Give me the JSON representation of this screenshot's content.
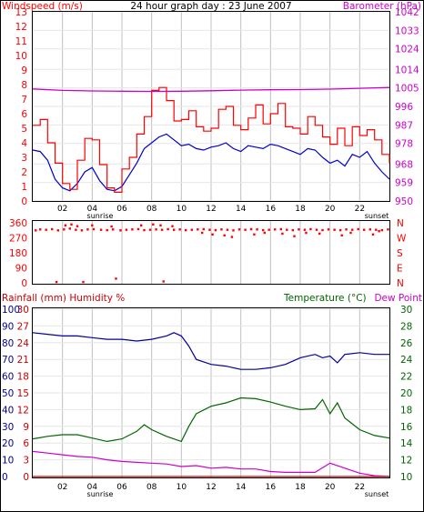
{
  "colors": {
    "wind": "#ff0000",
    "wind_avg": "#0000cc",
    "baro": "#cc00cc",
    "dir": "#ff0000",
    "rain": "#cc0000",
    "humidity": "#000099",
    "temp": "#006600",
    "dew": "#cc00cc",
    "grid": "#c0c0c0",
    "frame": "#000000"
  },
  "chart_data": [
    {
      "type": "line",
      "name": "wind-baro",
      "title": "24 hour graph day : 23 June 2007",
      "left_label": "Windspeed (m/s)",
      "right_label": "Barometer (hPa)",
      "x_ticks": [
        "02",
        "04",
        "06",
        "08",
        "10",
        "12",
        "14",
        "16",
        "18",
        "20",
        "22"
      ],
      "left_ticks": [
        "0",
        "1",
        "2",
        "3",
        "4",
        "5",
        "6",
        "7",
        "8",
        "9",
        "10",
        "11",
        "12",
        "13"
      ],
      "right_ticks": [
        "950",
        "959",
        "968",
        "978",
        "987",
        "996",
        "1005",
        "1014",
        "1024",
        "1033",
        "1042"
      ],
      "sunrise_label": "sunrise",
      "sunset_label": "sunset",
      "xlim": [
        0,
        24
      ],
      "ylim_left": [
        0,
        13
      ],
      "ylim_right": [
        950,
        1042
      ],
      "series": [
        {
          "key": "wind_avg",
          "x": [
            0,
            0.5,
            1,
            1.5,
            2,
            2.5,
            3,
            3.5,
            4,
            4.5,
            5,
            5.5,
            6,
            6.5,
            7,
            7.5,
            8,
            8.5,
            9,
            9.5,
            10,
            10.5,
            11,
            11.5,
            12,
            12.5,
            13,
            13.5,
            14,
            14.5,
            15,
            15.5,
            16,
            16.5,
            17,
            17.5,
            18,
            18.5,
            19,
            19.5,
            20,
            20.5,
            21,
            21.5,
            22,
            22.5,
            23,
            23.5,
            24
          ],
          "values": [
            3.5,
            3.4,
            2.8,
            1.5,
            0.9,
            0.7,
            1.2,
            2.0,
            2.3,
            1.4,
            0.8,
            0.7,
            1.0,
            1.8,
            2.6,
            3.6,
            4.0,
            4.4,
            4.6,
            4.2,
            3.8,
            3.9,
            3.6,
            3.5,
            3.7,
            3.8,
            4.0,
            3.6,
            3.4,
            3.8,
            3.7,
            3.6,
            3.9,
            3.8,
            3.6,
            3.4,
            3.2,
            3.6,
            3.5,
            3.0,
            2.6,
            2.8,
            2.4,
            3.2,
            3.0,
            3.4,
            2.6,
            2.0,
            1.5
          ]
        },
        {
          "key": "wind",
          "x": [
            0,
            0.5,
            1,
            1.5,
            2,
            2.5,
            3,
            3.5,
            4,
            4.5,
            5,
            5.5,
            6,
            6.5,
            7,
            7.5,
            8,
            8.5,
            9,
            9.5,
            10,
            10.5,
            11,
            11.5,
            12,
            12.5,
            13,
            13.5,
            14,
            14.5,
            15,
            15.5,
            16,
            16.5,
            17,
            17.5,
            18,
            18.5,
            19,
            19.5,
            20,
            20.5,
            21,
            21.5,
            22,
            22.5,
            23,
            23.5,
            24
          ],
          "values": [
            5.2,
            5.6,
            4.0,
            2.6,
            1.2,
            0.8,
            2.8,
            4.3,
            4.2,
            2.5,
            0.9,
            0.6,
            2.2,
            3.0,
            4.6,
            5.8,
            7.6,
            7.8,
            6.9,
            5.5,
            5.6,
            6.2,
            5.1,
            4.8,
            5.0,
            6.3,
            6.5,
            5.2,
            4.9,
            5.7,
            6.6,
            5.3,
            6.0,
            6.7,
            5.1,
            5.0,
            4.6,
            5.8,
            5.2,
            4.4,
            3.9,
            5.0,
            3.8,
            5.1,
            4.5,
            4.9,
            4.2,
            3.2,
            2.6
          ]
        },
        {
          "key": "baro",
          "x": [
            0,
            2,
            4,
            6,
            8,
            10,
            12,
            14,
            16,
            18,
            20,
            22,
            24
          ],
          "values": [
            1004.5,
            1003.8,
            1003.5,
            1003.4,
            1003.3,
            1003.4,
            1003.6,
            1003.9,
            1004.1,
            1004.2,
            1004.4,
            1004.8,
            1005.2
          ]
        }
      ]
    },
    {
      "type": "scatter",
      "name": "wind-direction",
      "left_ticks": [
        "0",
        "90",
        "180",
        "270",
        "360"
      ],
      "right_ticks": [
        "N",
        "E",
        "S",
        "W",
        "N"
      ],
      "xlim": [
        0,
        24
      ],
      "ylim": [
        0,
        360
      ],
      "series": [
        {
          "key": "dir",
          "x": [
            0.2,
            0.5,
            0.9,
            1.3,
            1.7,
            2.1,
            2.5,
            2.9,
            3.3,
            3.7,
            4.1,
            4.6,
            5.0,
            5.4,
            5.9,
            6.3,
            6.7,
            7.1,
            7.5,
            7.9,
            8.3,
            8.7,
            9.1,
            9.5,
            9.9,
            10.3,
            10.7,
            11.1,
            11.5,
            11.9,
            12.3,
            12.7,
            13.1,
            13.5,
            13.9,
            14.3,
            14.7,
            15.1,
            15.5,
            15.9,
            16.3,
            16.7,
            17.1,
            17.5,
            17.9,
            18.3,
            18.7,
            19.1,
            19.5,
            19.9,
            20.3,
            20.7,
            21.1,
            21.5,
            21.9,
            22.3,
            22.7,
            23.1,
            23.5,
            23.9,
            2.2,
            2.6,
            3.0,
            4.0,
            5.3,
            7.3,
            8.1,
            8.6,
            9.4,
            11.4,
            12.1,
            12.9,
            13.4,
            14.9,
            15.6,
            16.8,
            17.6,
            18.4,
            19.3,
            20.8,
            21.4,
            22.9,
            23.3,
            1.6,
            3.4,
            5.6,
            8.8
          ],
          "values": [
            315,
            320,
            318,
            322,
            315,
            320,
            325,
            318,
            315,
            320,
            322,
            318,
            316,
            320,
            315,
            318,
            320,
            322,
            316,
            318,
            320,
            318,
            322,
            318,
            320,
            316,
            318,
            320,
            322,
            318,
            316,
            320,
            318,
            315,
            320,
            318,
            322,
            320,
            316,
            318,
            320,
            322,
            318,
            316,
            320,
            318,
            322,
            318,
            316,
            320,
            318,
            316,
            320,
            318,
            322,
            318,
            320,
            318,
            316,
            320,
            345,
            350,
            340,
            345,
            338,
            345,
            350,
            345,
            340,
            300,
            290,
            285,
            275,
            290,
            300,
            295,
            280,
            300,
            295,
            285,
            300,
            290,
            310,
            5,
            5,
            25,
            8
          ]
        }
      ]
    },
    {
      "type": "line",
      "name": "rain-humidity-temp",
      "left_label": "Rainfall (mm)  Humidity %",
      "right_label": "Temperature (°C)",
      "right_label2": "Dew Point",
      "x_ticks": [
        "02",
        "04",
        "06",
        "08",
        "10",
        "12",
        "14",
        "16",
        "18",
        "20",
        "22"
      ],
      "rain_ticks": [
        "0",
        "3",
        "6",
        "9",
        "12",
        "15",
        "18",
        "21",
        "24",
        "27",
        "30"
      ],
      "hum_ticks": [
        "0",
        "10",
        "20",
        "30",
        "40",
        "50",
        "60",
        "70",
        "80",
        "90",
        "100"
      ],
      "temp_ticks": [
        "10",
        "12",
        "14",
        "16",
        "18",
        "20",
        "22",
        "24",
        "26",
        "28",
        "30"
      ],
      "sunrise_label": "sunrise",
      "sunset_label": "sunset",
      "xlim": [
        0,
        24
      ],
      "ylim_rain": [
        0,
        30
      ],
      "ylim_hum": [
        0,
        100
      ],
      "ylim_temp": [
        10,
        30
      ],
      "series": [
        {
          "key": "humidity",
          "x": [
            0,
            1,
            2,
            3,
            4,
            5,
            6,
            7,
            8,
            9,
            9.5,
            10,
            10.5,
            11,
            12,
            13,
            14,
            15,
            16,
            17,
            18,
            19,
            19.5,
            20,
            20.5,
            21,
            22,
            23,
            24
          ],
          "values": [
            86,
            85,
            84,
            84,
            83,
            82,
            82,
            81,
            82,
            84,
            86,
            84,
            78,
            70,
            67,
            66,
            64,
            64,
            65,
            67,
            71,
            73,
            71,
            72,
            68,
            73,
            74,
            73,
            73
          ]
        },
        {
          "key": "temp",
          "x": [
            0,
            1,
            2,
            3,
            4,
            5,
            6,
            7,
            7.5,
            8,
            9,
            10,
            10.5,
            11,
            12,
            13,
            14,
            15,
            16,
            17,
            18,
            19,
            19.5,
            20,
            20.5,
            21,
            22,
            23,
            24
          ],
          "values": [
            14.5,
            14.8,
            15.0,
            15.0,
            14.6,
            14.2,
            14.5,
            15.4,
            16.2,
            15.6,
            14.8,
            14.2,
            16.0,
            17.5,
            18.4,
            18.8,
            19.4,
            19.3,
            18.9,
            18.4,
            18.0,
            18.1,
            19.2,
            17.5,
            18.8,
            17.0,
            15.6,
            14.9,
            14.6
          ]
        },
        {
          "key": "dew",
          "x": [
            0,
            1,
            2,
            3,
            4,
            5,
            6,
            7,
            8,
            9,
            10,
            11,
            12,
            13,
            14,
            15,
            16,
            17,
            18,
            19,
            20,
            21,
            22,
            23,
            24
          ],
          "values": [
            13.0,
            12.8,
            12.6,
            12.4,
            12.3,
            12.0,
            11.8,
            11.7,
            11.6,
            11.5,
            11.2,
            11.3,
            11.0,
            11.1,
            10.9,
            10.9,
            10.6,
            10.5,
            10.5,
            10.5,
            11.6,
            11.0,
            10.4,
            10.1,
            10.0
          ]
        },
        {
          "key": "rain",
          "x": [
            0,
            24
          ],
          "values": [
            0,
            0
          ]
        }
      ]
    }
  ]
}
